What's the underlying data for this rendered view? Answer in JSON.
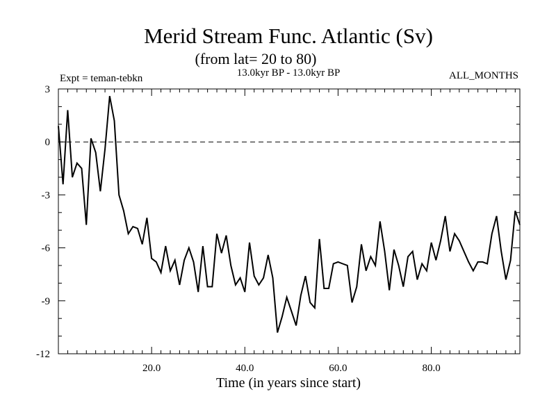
{
  "chart_data": {
    "type": "line",
    "title": "Merid Stream Func. Atlantic (Sv)",
    "subtitle": "(from lat= 20 to 80)",
    "left_label": "Expt = teman-tebkn",
    "center_label": "13.0kyr BP - 13.0kyr BP",
    "right_label": "ALL_MONTHS",
    "xlabel": "Time (in years since start)",
    "ylabel": "",
    "xlim": [
      0,
      99
    ],
    "ylim": [
      -12,
      3
    ],
    "xticks": [
      20,
      40,
      60,
      80
    ],
    "xtick_labels": [
      "20.0",
      "40.0",
      "60.0",
      "80.0"
    ],
    "yticks": [
      3,
      0,
      -3,
      -6,
      -9,
      -12
    ],
    "ytick_labels": [
      "3",
      "0",
      "-3",
      "-6",
      "-9",
      "-12"
    ],
    "reference_line": 0,
    "series": [
      {
        "name": "Merid Stream Func.",
        "x": [
          0,
          1,
          2,
          3,
          4,
          5,
          6,
          7,
          8,
          9,
          10,
          11,
          12,
          13,
          14,
          15,
          16,
          17,
          18,
          19,
          20,
          21,
          22,
          23,
          24,
          25,
          26,
          27,
          28,
          29,
          30,
          31,
          32,
          33,
          34,
          35,
          36,
          37,
          38,
          39,
          40,
          41,
          42,
          43,
          44,
          45,
          46,
          47,
          48,
          49,
          50,
          51,
          52,
          53,
          54,
          55,
          56,
          57,
          58,
          59,
          60,
          61,
          62,
          63,
          64,
          65,
          66,
          67,
          68,
          69,
          70,
          71,
          72,
          73,
          74,
          75,
          76,
          77,
          78,
          79,
          80,
          81,
          82,
          83,
          84,
          85,
          86,
          87,
          88,
          89,
          90,
          91,
          92,
          93,
          94,
          95,
          96,
          97,
          98,
          99
        ],
        "values": [
          0.9,
          -2.4,
          1.8,
          -2.0,
          -1.2,
          -1.5,
          -4.7,
          0.2,
          -0.6,
          -2.8,
          -0.4,
          2.6,
          1.2,
          -3.0,
          -3.9,
          -5.2,
          -4.8,
          -4.9,
          -5.8,
          -4.3,
          -6.6,
          -6.8,
          -7.4,
          -5.9,
          -7.3,
          -6.7,
          -8.1,
          -6.7,
          -6.0,
          -6.8,
          -8.5,
          -5.9,
          -8.2,
          -8.2,
          -5.2,
          -6.3,
          -5.3,
          -7.0,
          -8.1,
          -7.7,
          -8.5,
          -5.7,
          -7.6,
          -8.1,
          -7.7,
          -6.4,
          -7.7,
          -10.8,
          -9.9,
          -8.8,
          -9.6,
          -10.4,
          -8.7,
          -7.6,
          -9.1,
          -9.4,
          -5.5,
          -8.3,
          -8.3,
          -6.9,
          -6.8,
          -6.9,
          -7.0,
          -9.1,
          -8.2,
          -5.8,
          -7.3,
          -6.5,
          -7.0,
          -4.5,
          -6.2,
          -8.4,
          -6.1,
          -7.0,
          -8.2,
          -6.5,
          -6.2,
          -7.8,
          -6.9,
          -7.3,
          -5.7,
          -6.7,
          -5.6,
          -4.2,
          -6.2,
          -5.2,
          -5.6,
          -6.2,
          -6.8,
          -7.3,
          -6.8,
          -6.8,
          -6.9,
          -5.2,
          -4.2,
          -6.2,
          -7.8,
          -6.7,
          -3.9,
          -4.7
        ]
      }
    ]
  }
}
